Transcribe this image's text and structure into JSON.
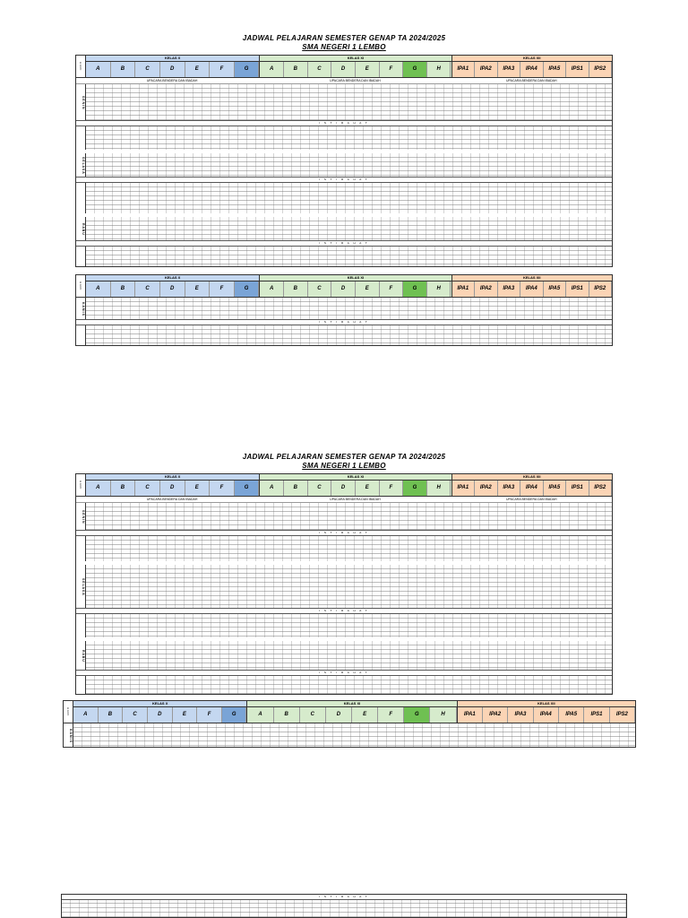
{
  "title": "JADWAL  PELAJARAN SEMESTER  GENAP TA 2024/2025",
  "school": "SMA NEGERI 1 LEMBO",
  "groups": {
    "x": "KELAS X",
    "xi": "KELAS XI",
    "xii": "KELAS XII"
  },
  "classes_x": [
    "A",
    "B",
    "C",
    "D",
    "E",
    "F",
    "G"
  ],
  "classes_xi": [
    "A",
    "B",
    "C",
    "D",
    "E",
    "F",
    "G",
    "H"
  ],
  "classes_xii": [
    "IPA1",
    "IPA2",
    "IPA3",
    "IPA4",
    "IPA5",
    "IPS1",
    "IPS2"
  ],
  "kd_label": "K D",
  "ceremony": "UPACARA BENDERA DAN IBADAH",
  "istirahat": "I S T I R A H A T",
  "days": {
    "mon": "S E N I N",
    "tue": "S E L A S A",
    "wed": "R A B U",
    "thu": "K A M I S"
  },
  "day_header": "H A R I"
}
